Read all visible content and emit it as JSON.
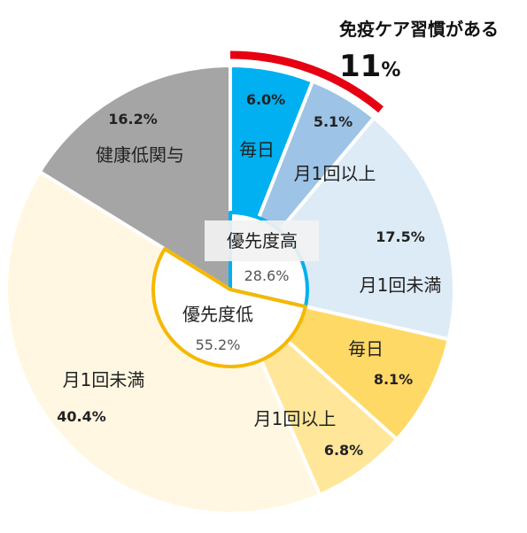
{
  "chart_data": {
    "type": "pie",
    "slices": [
      {
        "label": "毎日",
        "value": 6.0,
        "value_label": "6.0%",
        "color": "#00B0F0"
      },
      {
        "label": "月1回以上",
        "value": 5.1,
        "value_label": "5.1%",
        "color": "#9DC3E6"
      },
      {
        "label": "月1回未満",
        "value": 17.5,
        "value_label": "17.5%",
        "color": "#DDEBF7"
      },
      {
        "label": "毎日",
        "value": 8.1,
        "value_label": "8.1%",
        "color": "#FFD966"
      },
      {
        "label": "月1回以上",
        "value": 6.8,
        "value_label": "6.8%",
        "color": "#FFE699"
      },
      {
        "label": "月1回未満",
        "value": 40.4,
        "value_label": "40.4%",
        "color": "#FFF7E1"
      },
      {
        "label": "健康低関与",
        "value": 16.2,
        "value_label": "16.2%",
        "color": "#A5A5A5"
      }
    ],
    "groups": [
      {
        "label": "優先度高",
        "value_label": "28.6%",
        "value": 28.6,
        "color": "#00B0F0"
      },
      {
        "label": "優先度低",
        "value_label": "55.2%",
        "value": 55.2,
        "color": "#F5B800"
      }
    ],
    "callout": {
      "label": "免疫ケア習慣がある",
      "value_label": "11",
      "unit": "%",
      "value": 11,
      "color": "#E60012"
    }
  }
}
